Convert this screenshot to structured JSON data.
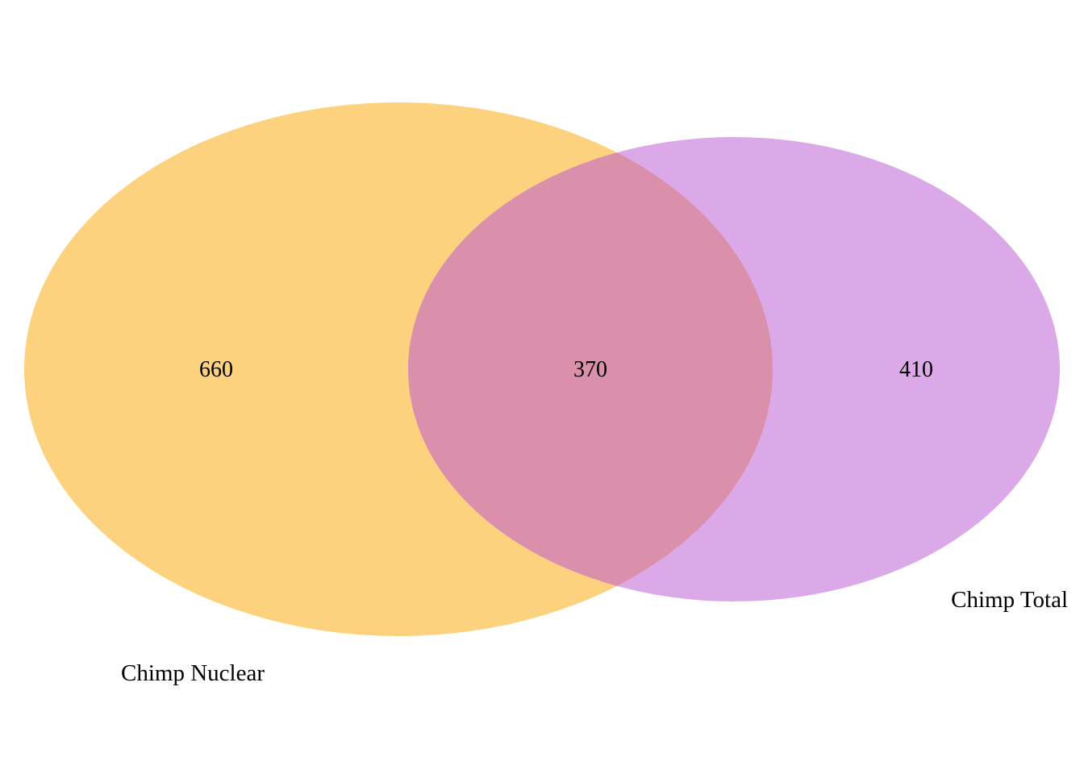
{
  "venn": {
    "sets": [
      {
        "label": "Chimp Nuclear",
        "color": "#fdd27f",
        "exclusive_count": "660"
      },
      {
        "label": "Chimp Total",
        "color": "#dba9e8",
        "exclusive_count": "410"
      }
    ],
    "overlap": {
      "count": "370",
      "color": "#da90aa"
    }
  }
}
